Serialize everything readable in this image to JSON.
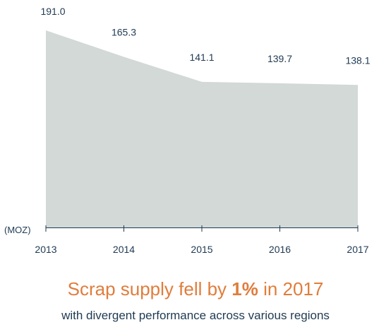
{
  "chart_data": {
    "type": "area",
    "x": [
      "2013",
      "2014",
      "2015",
      "2016",
      "2017"
    ],
    "values": [
      191.0,
      165.3,
      141.1,
      139.7,
      138.1
    ],
    "value_labels": [
      "191.0",
      "165.3",
      "141.1",
      "139.7",
      "138.1"
    ],
    "unit_label": "(MOZ)",
    "ylim": [
      0,
      191.0
    ],
    "grid": false,
    "colors": {
      "area": "#d2d9d6",
      "text": "#1f3a52"
    }
  },
  "headline": {
    "prefix": "Scrap supply fell by ",
    "highlight": "1%",
    "suffix": " in 2017",
    "color": "#e07d3c"
  },
  "subline": "with divergent performance across various regions"
}
